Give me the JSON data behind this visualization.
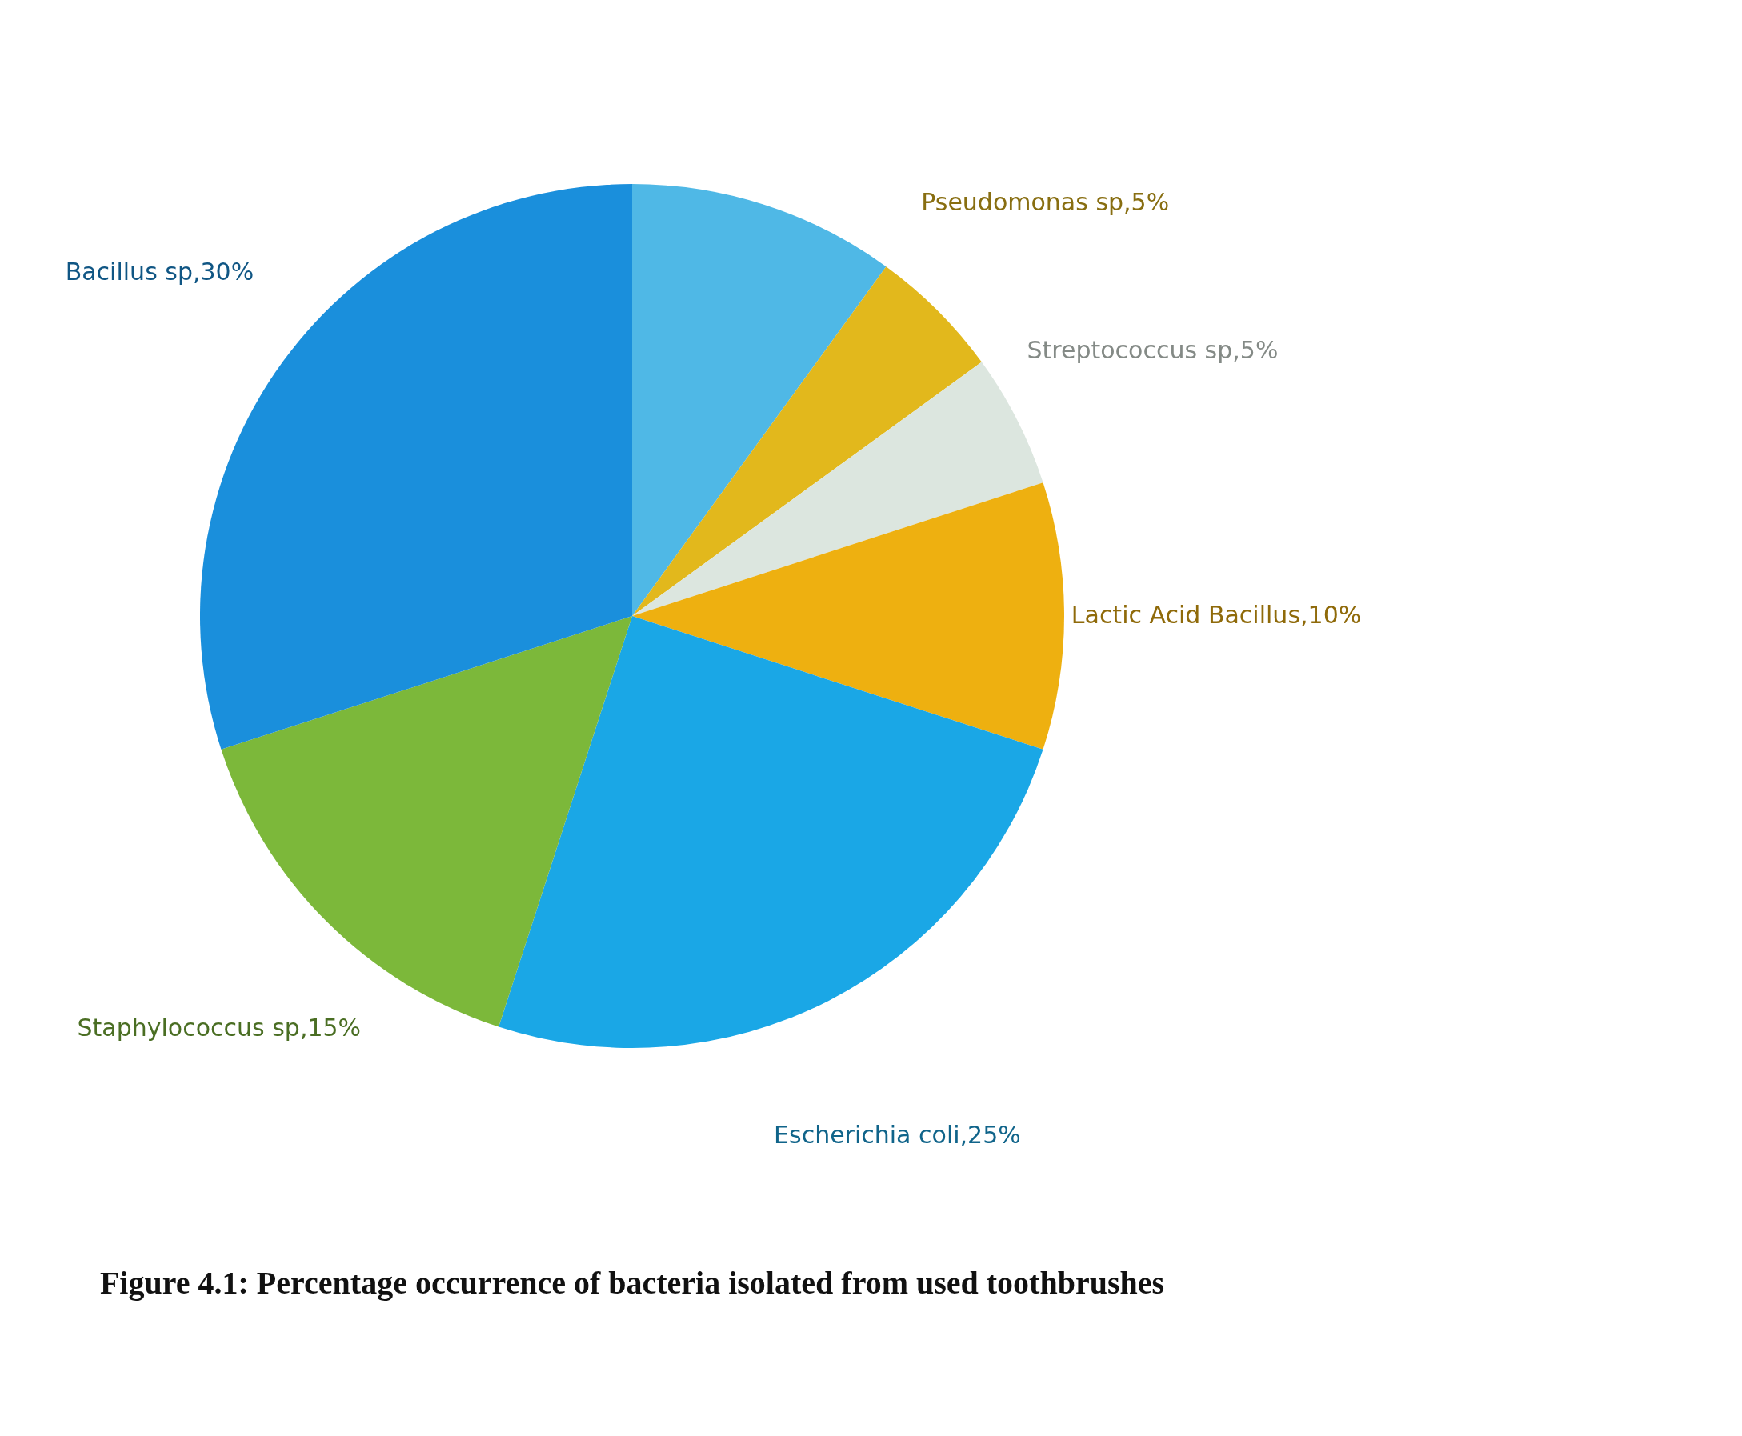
{
  "chart_data": {
    "type": "pie",
    "title": "Figure 4.1: Percentage occurrence of bacteria isolated from used toothbrushes",
    "categories": [
      null,
      "Pseudomonas sp,5%",
      "Streptococcus sp,5%",
      "Lactic Acid Bacillus,10%",
      "Escherichia coli,25%",
      "Staphylococcus sp,15%",
      "Bacillus sp,30%"
    ],
    "values": [
      10,
      5,
      5,
      10,
      25,
      15,
      30
    ],
    "colors": [
      "#4fb8e6",
      "#e2b81c",
      "#dce6df",
      "#eeb010",
      "#1aa7e6",
      "#7cb83a",
      "#1a8fdc"
    ]
  }
}
